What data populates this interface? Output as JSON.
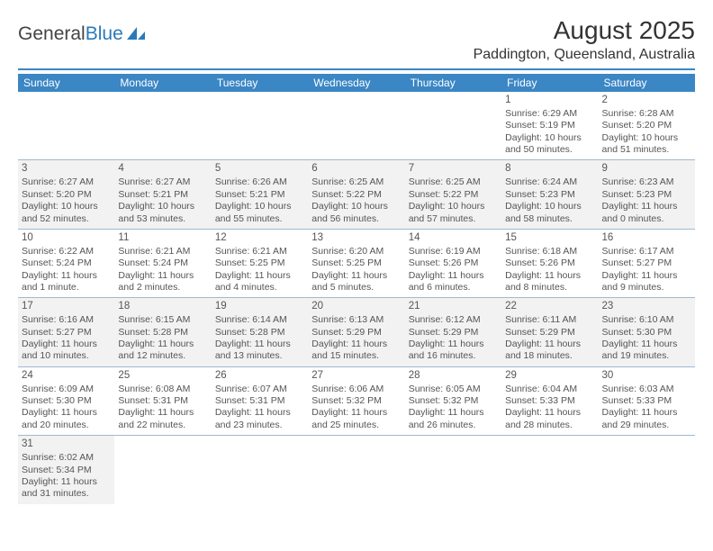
{
  "logo": {
    "text1": "General",
    "text2": "Blue",
    "color": "#2a7ab9"
  },
  "title": "August 2025",
  "location": "Paddington, Queensland, Australia",
  "header_bg": "#3b86c4",
  "days_of_week": [
    "Sunday",
    "Monday",
    "Tuesday",
    "Wednesday",
    "Thursday",
    "Friday",
    "Saturday"
  ],
  "weeks": [
    [
      null,
      null,
      null,
      null,
      null,
      {
        "n": "1",
        "sr": "Sunrise: 6:29 AM",
        "ss": "Sunset: 5:19 PM",
        "dl": "Daylight: 10 hours and 50 minutes."
      },
      {
        "n": "2",
        "sr": "Sunrise: 6:28 AM",
        "ss": "Sunset: 5:20 PM",
        "dl": "Daylight: 10 hours and 51 minutes."
      }
    ],
    [
      {
        "n": "3",
        "sr": "Sunrise: 6:27 AM",
        "ss": "Sunset: 5:20 PM",
        "dl": "Daylight: 10 hours and 52 minutes."
      },
      {
        "n": "4",
        "sr": "Sunrise: 6:27 AM",
        "ss": "Sunset: 5:21 PM",
        "dl": "Daylight: 10 hours and 53 minutes."
      },
      {
        "n": "5",
        "sr": "Sunrise: 6:26 AM",
        "ss": "Sunset: 5:21 PM",
        "dl": "Daylight: 10 hours and 55 minutes."
      },
      {
        "n": "6",
        "sr": "Sunrise: 6:25 AM",
        "ss": "Sunset: 5:22 PM",
        "dl": "Daylight: 10 hours and 56 minutes."
      },
      {
        "n": "7",
        "sr": "Sunrise: 6:25 AM",
        "ss": "Sunset: 5:22 PM",
        "dl": "Daylight: 10 hours and 57 minutes."
      },
      {
        "n": "8",
        "sr": "Sunrise: 6:24 AM",
        "ss": "Sunset: 5:23 PM",
        "dl": "Daylight: 10 hours and 58 minutes."
      },
      {
        "n": "9",
        "sr": "Sunrise: 6:23 AM",
        "ss": "Sunset: 5:23 PM",
        "dl": "Daylight: 11 hours and 0 minutes."
      }
    ],
    [
      {
        "n": "10",
        "sr": "Sunrise: 6:22 AM",
        "ss": "Sunset: 5:24 PM",
        "dl": "Daylight: 11 hours and 1 minute."
      },
      {
        "n": "11",
        "sr": "Sunrise: 6:21 AM",
        "ss": "Sunset: 5:24 PM",
        "dl": "Daylight: 11 hours and 2 minutes."
      },
      {
        "n": "12",
        "sr": "Sunrise: 6:21 AM",
        "ss": "Sunset: 5:25 PM",
        "dl": "Daylight: 11 hours and 4 minutes."
      },
      {
        "n": "13",
        "sr": "Sunrise: 6:20 AM",
        "ss": "Sunset: 5:25 PM",
        "dl": "Daylight: 11 hours and 5 minutes."
      },
      {
        "n": "14",
        "sr": "Sunrise: 6:19 AM",
        "ss": "Sunset: 5:26 PM",
        "dl": "Daylight: 11 hours and 6 minutes."
      },
      {
        "n": "15",
        "sr": "Sunrise: 6:18 AM",
        "ss": "Sunset: 5:26 PM",
        "dl": "Daylight: 11 hours and 8 minutes."
      },
      {
        "n": "16",
        "sr": "Sunrise: 6:17 AM",
        "ss": "Sunset: 5:27 PM",
        "dl": "Daylight: 11 hours and 9 minutes."
      }
    ],
    [
      {
        "n": "17",
        "sr": "Sunrise: 6:16 AM",
        "ss": "Sunset: 5:27 PM",
        "dl": "Daylight: 11 hours and 10 minutes."
      },
      {
        "n": "18",
        "sr": "Sunrise: 6:15 AM",
        "ss": "Sunset: 5:28 PM",
        "dl": "Daylight: 11 hours and 12 minutes."
      },
      {
        "n": "19",
        "sr": "Sunrise: 6:14 AM",
        "ss": "Sunset: 5:28 PM",
        "dl": "Daylight: 11 hours and 13 minutes."
      },
      {
        "n": "20",
        "sr": "Sunrise: 6:13 AM",
        "ss": "Sunset: 5:29 PM",
        "dl": "Daylight: 11 hours and 15 minutes."
      },
      {
        "n": "21",
        "sr": "Sunrise: 6:12 AM",
        "ss": "Sunset: 5:29 PM",
        "dl": "Daylight: 11 hours and 16 minutes."
      },
      {
        "n": "22",
        "sr": "Sunrise: 6:11 AM",
        "ss": "Sunset: 5:29 PM",
        "dl": "Daylight: 11 hours and 18 minutes."
      },
      {
        "n": "23",
        "sr": "Sunrise: 6:10 AM",
        "ss": "Sunset: 5:30 PM",
        "dl": "Daylight: 11 hours and 19 minutes."
      }
    ],
    [
      {
        "n": "24",
        "sr": "Sunrise: 6:09 AM",
        "ss": "Sunset: 5:30 PM",
        "dl": "Daylight: 11 hours and 20 minutes."
      },
      {
        "n": "25",
        "sr": "Sunrise: 6:08 AM",
        "ss": "Sunset: 5:31 PM",
        "dl": "Daylight: 11 hours and 22 minutes."
      },
      {
        "n": "26",
        "sr": "Sunrise: 6:07 AM",
        "ss": "Sunset: 5:31 PM",
        "dl": "Daylight: 11 hours and 23 minutes."
      },
      {
        "n": "27",
        "sr": "Sunrise: 6:06 AM",
        "ss": "Sunset: 5:32 PM",
        "dl": "Daylight: 11 hours and 25 minutes."
      },
      {
        "n": "28",
        "sr": "Sunrise: 6:05 AM",
        "ss": "Sunset: 5:32 PM",
        "dl": "Daylight: 11 hours and 26 minutes."
      },
      {
        "n": "29",
        "sr": "Sunrise: 6:04 AM",
        "ss": "Sunset: 5:33 PM",
        "dl": "Daylight: 11 hours and 28 minutes."
      },
      {
        "n": "30",
        "sr": "Sunrise: 6:03 AM",
        "ss": "Sunset: 5:33 PM",
        "dl": "Daylight: 11 hours and 29 minutes."
      }
    ],
    [
      {
        "n": "31",
        "sr": "Sunrise: 6:02 AM",
        "ss": "Sunset: 5:34 PM",
        "dl": "Daylight: 11 hours and 31 minutes."
      },
      null,
      null,
      null,
      null,
      null,
      null
    ]
  ]
}
